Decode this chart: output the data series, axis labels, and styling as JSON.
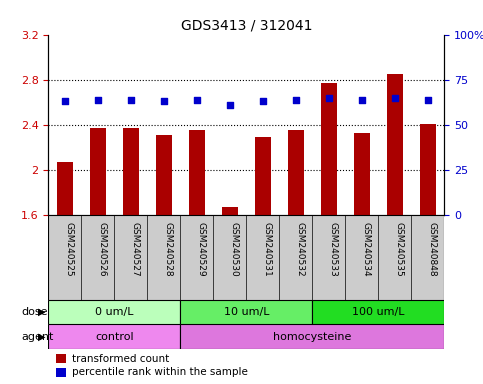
{
  "title": "GDS3413 / 312041",
  "samples": [
    "GSM240525",
    "GSM240526",
    "GSM240527",
    "GSM240528",
    "GSM240529",
    "GSM240530",
    "GSM240531",
    "GSM240532",
    "GSM240533",
    "GSM240534",
    "GSM240535",
    "GSM240848"
  ],
  "transformed_count": [
    2.07,
    2.37,
    2.37,
    2.31,
    2.35,
    1.67,
    2.29,
    2.35,
    2.77,
    2.33,
    2.85,
    2.41
  ],
  "percentile_rank": [
    63,
    64,
    64,
    63,
    64,
    61,
    63,
    64,
    65,
    64,
    65,
    64
  ],
  "bar_color": "#aa0000",
  "dot_color": "#0000cc",
  "ylim_left": [
    1.6,
    3.2
  ],
  "ylim_right": [
    0,
    100
  ],
  "yticks_left": [
    1.6,
    2.0,
    2.4,
    2.8,
    3.2
  ],
  "ytick_labels_left": [
    "1.6",
    "2",
    "2.4",
    "2.8",
    "3.2"
  ],
  "yticks_right": [
    0,
    25,
    50,
    75,
    100
  ],
  "ytick_labels_right": [
    "0",
    "25",
    "50",
    "75",
    "100%"
  ],
  "dose_groups": [
    {
      "label": "0 um/L",
      "start": 0,
      "end": 3,
      "color": "#bbffbb"
    },
    {
      "label": "10 um/L",
      "start": 4,
      "end": 7,
      "color": "#66ee66"
    },
    {
      "label": "100 um/L",
      "start": 8,
      "end": 11,
      "color": "#22dd22"
    }
  ],
  "agent_groups": [
    {
      "label": "control",
      "start": 0,
      "end": 3,
      "color": "#ee88ee"
    },
    {
      "label": "homocysteine",
      "start": 4,
      "end": 11,
      "color": "#ee88ee"
    }
  ],
  "dose_label": "dose",
  "agent_label": "agent",
  "legend_bar": "transformed count",
  "legend_dot": "percentile rank within the sample",
  "tick_label_area_color": "#cccccc",
  "ylabel_left_color": "#cc0000",
  "ylabel_right_color": "#0000cc"
}
